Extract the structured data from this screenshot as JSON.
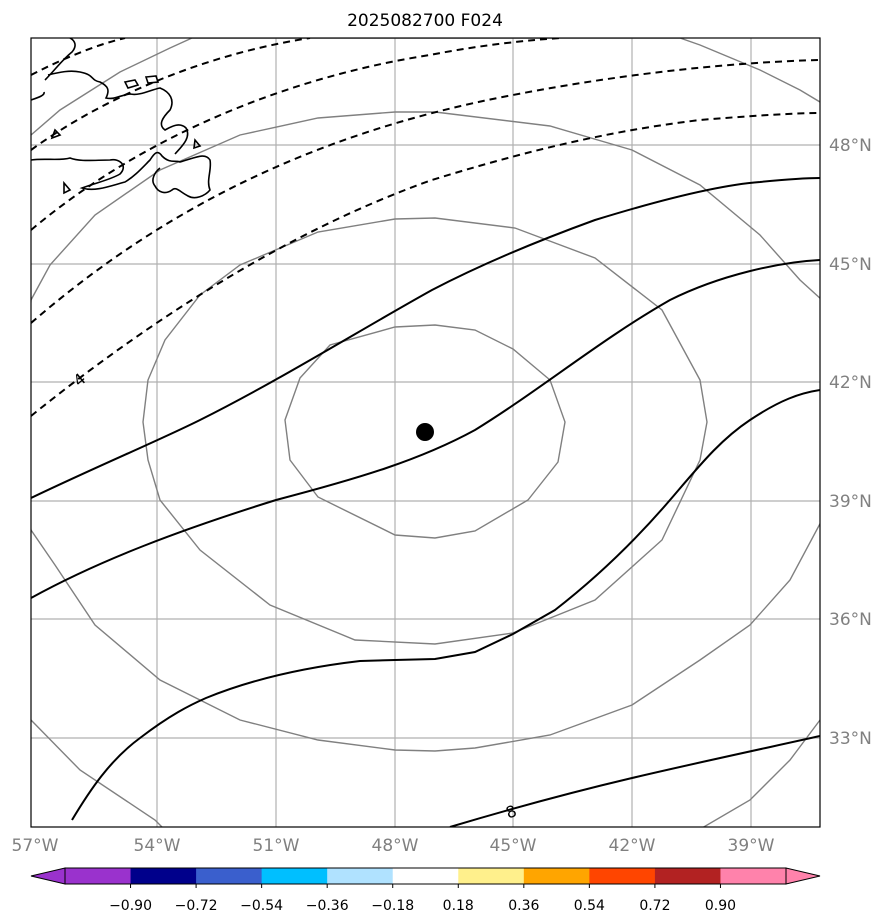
{
  "title": "2025082700 F024",
  "map": {
    "lat_labels": [
      "48°N",
      "45°N",
      "42°N",
      "39°N",
      "36°N",
      "33°N"
    ],
    "lon_labels": [
      "57°W",
      "54°W",
      "51°W",
      "48°W",
      "45°W",
      "42°W",
      "39°W"
    ],
    "contour_labels": [
      "4",
      "8"
    ],
    "center_marker": "storm-center",
    "colors": {
      "grid": "#b0b0b0",
      "circles": "#808080",
      "contours": "#000000"
    }
  },
  "colorbar": {
    "tick_labels": [
      "−0.90",
      "−0.72",
      "−0.54",
      "−0.36",
      "−0.18",
      "0.18",
      "0.36",
      "0.54",
      "0.72",
      "0.90"
    ],
    "colors": [
      "#9a32cd",
      "#00008b",
      "#3a5fcd",
      "#00bfff",
      "#b0e2ff",
      "#ffffff",
      "#fff08c",
      "#ffa500",
      "#ff4500",
      "#b22222",
      "#ff82ab"
    ]
  }
}
